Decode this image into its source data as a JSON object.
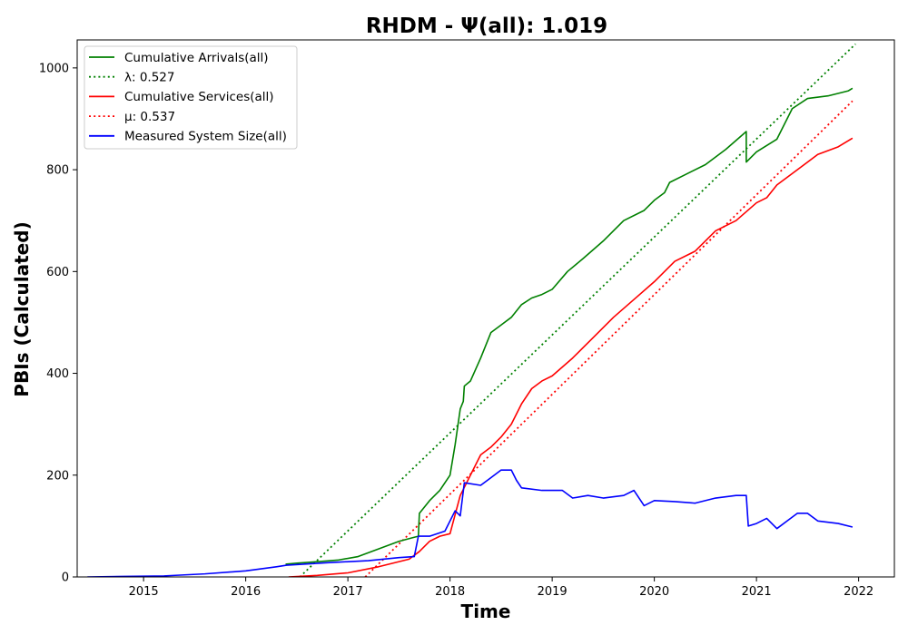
{
  "chart_data": {
    "type": "line",
    "title": "RHDM -  Ψ(all): 1.019",
    "xlabel": "Time",
    "ylabel": "PBIs (Calculated)",
    "xlim": [
      2014.35,
      2022.35
    ],
    "ylim": [
      0,
      1055
    ],
    "x_ticks": [
      2015,
      2016,
      2017,
      2018,
      2019,
      2020,
      2021,
      2022
    ],
    "x_tick_labels": [
      "2015",
      "2016",
      "2017",
      "2018",
      "2019",
      "2020",
      "2021",
      "2022"
    ],
    "y_ticks": [
      0,
      200,
      400,
      600,
      800,
      1000
    ],
    "y_tick_labels": [
      "0",
      "200",
      "400",
      "600",
      "800",
      "1000"
    ],
    "legend_position": "upper-left",
    "series": [
      {
        "name": "Cumulative Arrivals(all)",
        "color": "#008000",
        "style": "solid",
        "x": [
          2016.39,
          2016.5,
          2016.7,
          2016.9,
          2017.1,
          2017.3,
          2017.5,
          2017.65,
          2017.69,
          2017.7,
          2017.8,
          2017.9,
          2018.0,
          2018.05,
          2018.1,
          2018.13,
          2018.14,
          2018.2,
          2018.3,
          2018.4,
          2018.5,
          2018.6,
          2018.7,
          2018.8,
          2018.9,
          2019.0,
          2019.15,
          2019.3,
          2019.5,
          2019.7,
          2019.9,
          2020.0,
          2020.1,
          2020.15,
          2020.3,
          2020.5,
          2020.7,
          2020.9,
          2020.9,
          2021.0,
          2021.2,
          2021.35,
          2021.5,
          2021.7,
          2021.9,
          2021.94
        ],
        "y": [
          25,
          27,
          30,
          33,
          40,
          55,
          70,
          78,
          80,
          125,
          150,
          170,
          200,
          260,
          330,
          345,
          375,
          385,
          430,
          480,
          495,
          510,
          535,
          548,
          555,
          565,
          600,
          625,
          660,
          700,
          720,
          740,
          755,
          775,
          790,
          810,
          840,
          875,
          815,
          835,
          860,
          920,
          940,
          945,
          955,
          960
        ]
      },
      {
        "name": "λ: 0.527",
        "color": "#008000",
        "style": "dotted",
        "x": [
          2016.53,
          2021.97
        ],
        "y": [
          0,
          1047
        ]
      },
      {
        "name": "Cumulative Services(all)",
        "color": "#ff0000",
        "style": "solid",
        "x": [
          2016.42,
          2016.7,
          2017.0,
          2017.3,
          2017.6,
          2017.7,
          2017.8,
          2017.9,
          2018.0,
          2018.1,
          2018.2,
          2018.3,
          2018.4,
          2018.5,
          2018.6,
          2018.7,
          2018.8,
          2018.9,
          2019.0,
          2019.2,
          2019.4,
          2019.6,
          2019.8,
          2020.0,
          2020.2,
          2020.4,
          2020.6,
          2020.8,
          2021.0,
          2021.1,
          2021.2,
          2021.4,
          2021.6,
          2021.8,
          2021.94
        ],
        "y": [
          0,
          3,
          8,
          20,
          35,
          50,
          70,
          80,
          85,
          160,
          200,
          240,
          255,
          275,
          300,
          340,
          370,
          385,
          395,
          430,
          470,
          510,
          545,
          580,
          620,
          640,
          680,
          700,
          735,
          745,
          770,
          800,
          830,
          845,
          862
        ]
      },
      {
        "name": "μ: 0.537",
        "color": "#ff0000",
        "style": "dotted",
        "x": [
          2017.17,
          2021.94
        ],
        "y": [
          0,
          935
        ]
      },
      {
        "name": "Measured System Size(all)",
        "color": "#0000ff",
        "style": "solid",
        "x": [
          2014.45,
          2014.8,
          2015.2,
          2015.6,
          2016.0,
          2016.3,
          2016.4,
          2016.8,
          2017.2,
          2017.5,
          2017.65,
          2017.69,
          2017.8,
          2017.95,
          2018.05,
          2018.1,
          2018.14,
          2018.3,
          2018.4,
          2018.5,
          2018.6,
          2018.65,
          2018.7,
          2018.9,
          2019.1,
          2019.2,
          2019.35,
          2019.5,
          2019.7,
          2019.8,
          2019.9,
          2020.0,
          2020.2,
          2020.4,
          2020.6,
          2020.8,
          2020.9,
          2020.92,
          2021.0,
          2021.1,
          2021.2,
          2021.3,
          2021.4,
          2021.5,
          2021.6,
          2021.8,
          2021.94
        ],
        "y": [
          0,
          1,
          2,
          6,
          12,
          20,
          23,
          28,
          32,
          38,
          40,
          80,
          80,
          90,
          130,
          120,
          185,
          180,
          195,
          210,
          210,
          190,
          175,
          170,
          170,
          155,
          160,
          155,
          160,
          170,
          140,
          150,
          148,
          145,
          155,
          160,
          160,
          100,
          105,
          115,
          95,
          110,
          125,
          125,
          110,
          105,
          98
        ]
      }
    ]
  }
}
